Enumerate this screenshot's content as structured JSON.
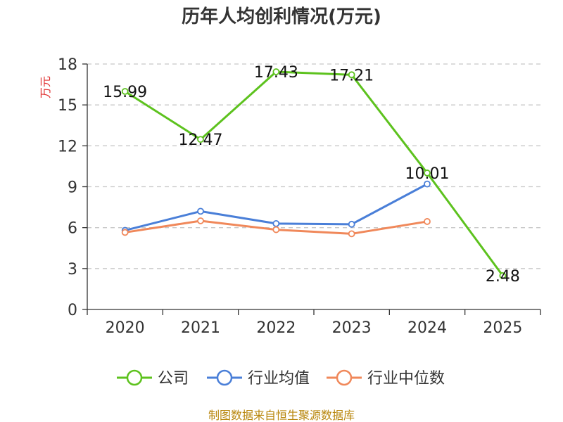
{
  "chart_data": {
    "type": "line",
    "title": "历年人均创利情况(万元)",
    "ylabel": "万元",
    "xlabel": "",
    "categories": [
      "2020",
      "2021",
      "2022",
      "2023",
      "2024",
      "2025"
    ],
    "ylim": [
      0,
      18
    ],
    "yticks": [
      0,
      3,
      6,
      9,
      12,
      15,
      18
    ],
    "grid": true,
    "legend_position": "bottom",
    "series": [
      {
        "name": "公司",
        "color": "#5dc21e",
        "values": [
          15.99,
          12.47,
          17.43,
          17.21,
          10.01,
          2.48
        ],
        "labels": [
          "15.99",
          "12.47",
          "17.43",
          "17.21",
          "10.01",
          "2.48"
        ]
      },
      {
        "name": "行业均值",
        "color": "#4a7fd8",
        "values": [
          5.8,
          7.2,
          6.3,
          6.25,
          9.2,
          null
        ]
      },
      {
        "name": "行业中位数",
        "color": "#f0885a",
        "values": [
          5.65,
          6.5,
          5.85,
          5.55,
          6.45,
          null
        ]
      }
    ],
    "source": "制图数据来自恒生聚源数据库"
  }
}
